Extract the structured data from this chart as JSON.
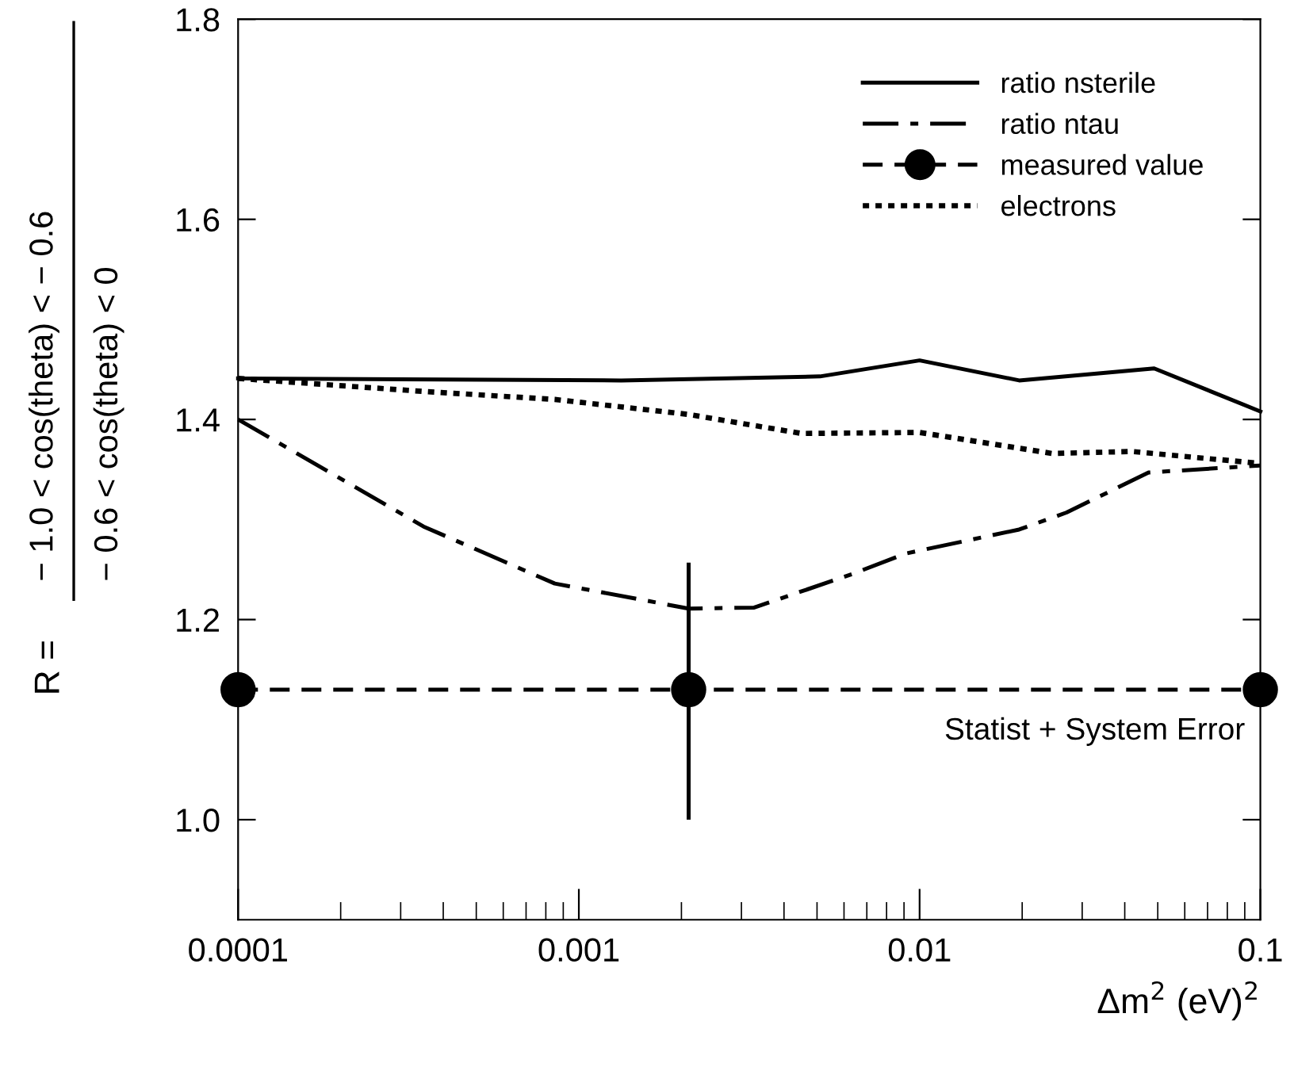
{
  "chart_data": {
    "type": "line",
    "xlabel": "Δm$^{2}$ (eV)$^{2}$",
    "ylabel": "R =",
    "log": "x",
    "xlim": [
      0.0001,
      0.1
    ],
    "xticks": [
      0.0001,
      0.001,
      0.01,
      0.1
    ],
    "ylim": [
      0.9,
      1.8
    ],
    "yticks": [
      {
        "value": 1.0,
        "label": "1.0"
      },
      1.2,
      1.4,
      1.6,
      1.8
    ],
    "grid": false,
    "legend": "top right",
    "series": [
      {
        "name": "ratio nsterile",
        "color": "#000000",
        "line_style": "solid",
        "marker": "none",
        "x": [
          0.0001,
          0.00133,
          0.0051,
          0.01,
          0.0196,
          0.0488,
          0.1
        ],
        "values": [
          1.441,
          1.439,
          1.443,
          1.459,
          1.439,
          1.451,
          1.408
        ]
      },
      {
        "name": "ratio ntau",
        "color": "#000000",
        "line_style": "dashdot",
        "marker": "none",
        "x": [
          0.0001,
          0.00035,
          0.00085,
          0.0021,
          0.00327,
          0.0064,
          0.0091,
          0.0196,
          0.027,
          0.047,
          0.1
        ],
        "values": [
          1.4,
          1.293,
          1.236,
          1.211,
          1.212,
          1.246,
          1.266,
          1.29,
          1.307,
          1.347,
          1.354
        ]
      },
      {
        "name": "measured value",
        "color": "#000000",
        "line_style": "dashed",
        "marker": "circle",
        "x": [
          0.0001,
          0.0021,
          0.1
        ],
        "values": [
          1.13,
          1.13,
          1.13
        ],
        "errors": [
          null,
          [
            1.0,
            1.257
          ],
          null
        ]
      },
      {
        "name": "electrons",
        "color": "#000000",
        "line_style": "dotted",
        "marker": "none",
        "x": [
          0.0001,
          0.00035,
          0.00085,
          0.0021,
          0.0045,
          0.01,
          0.0245,
          0.042,
          0.1
        ],
        "values": [
          1.441,
          1.428,
          1.42,
          1.405,
          1.386,
          1.387,
          1.366,
          1.368,
          1.356
        ]
      }
    ],
    "annotations": [
      "− 1.0 < cos(theta) < − 0.6",
      "− 0.6 < cos(theta) < 0",
      "Statist + System Error"
    ]
  }
}
